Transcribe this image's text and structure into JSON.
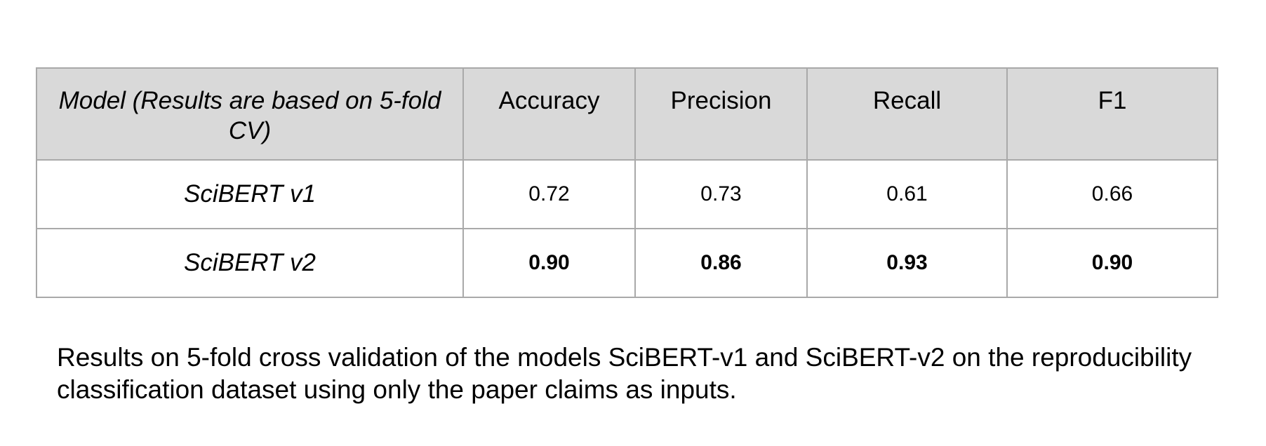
{
  "table": {
    "headers": {
      "model": "Model (Results are based on 5-fold CV)",
      "accuracy": "Accuracy",
      "precision": "Precision",
      "recall": "Recall",
      "f1": "F1"
    },
    "rows": [
      {
        "model": "SciBERT v1",
        "accuracy": "0.72",
        "precision": "0.73",
        "recall": "0.61",
        "f1": "0.66",
        "bold": false
      },
      {
        "model": "SciBERT v2",
        "accuracy": "0.90",
        "precision": "0.86",
        "recall": "0.93",
        "f1": "0.90",
        "bold": true
      }
    ]
  },
  "caption": "Results on 5-fold cross validation of the models SciBERT-v1 and SciBERT-v2 on the reproducibility classification dataset using only the paper claims as inputs.",
  "colors": {
    "header_background": "#d9d9d9",
    "border": "#a9a9a9",
    "text": "#000000"
  }
}
